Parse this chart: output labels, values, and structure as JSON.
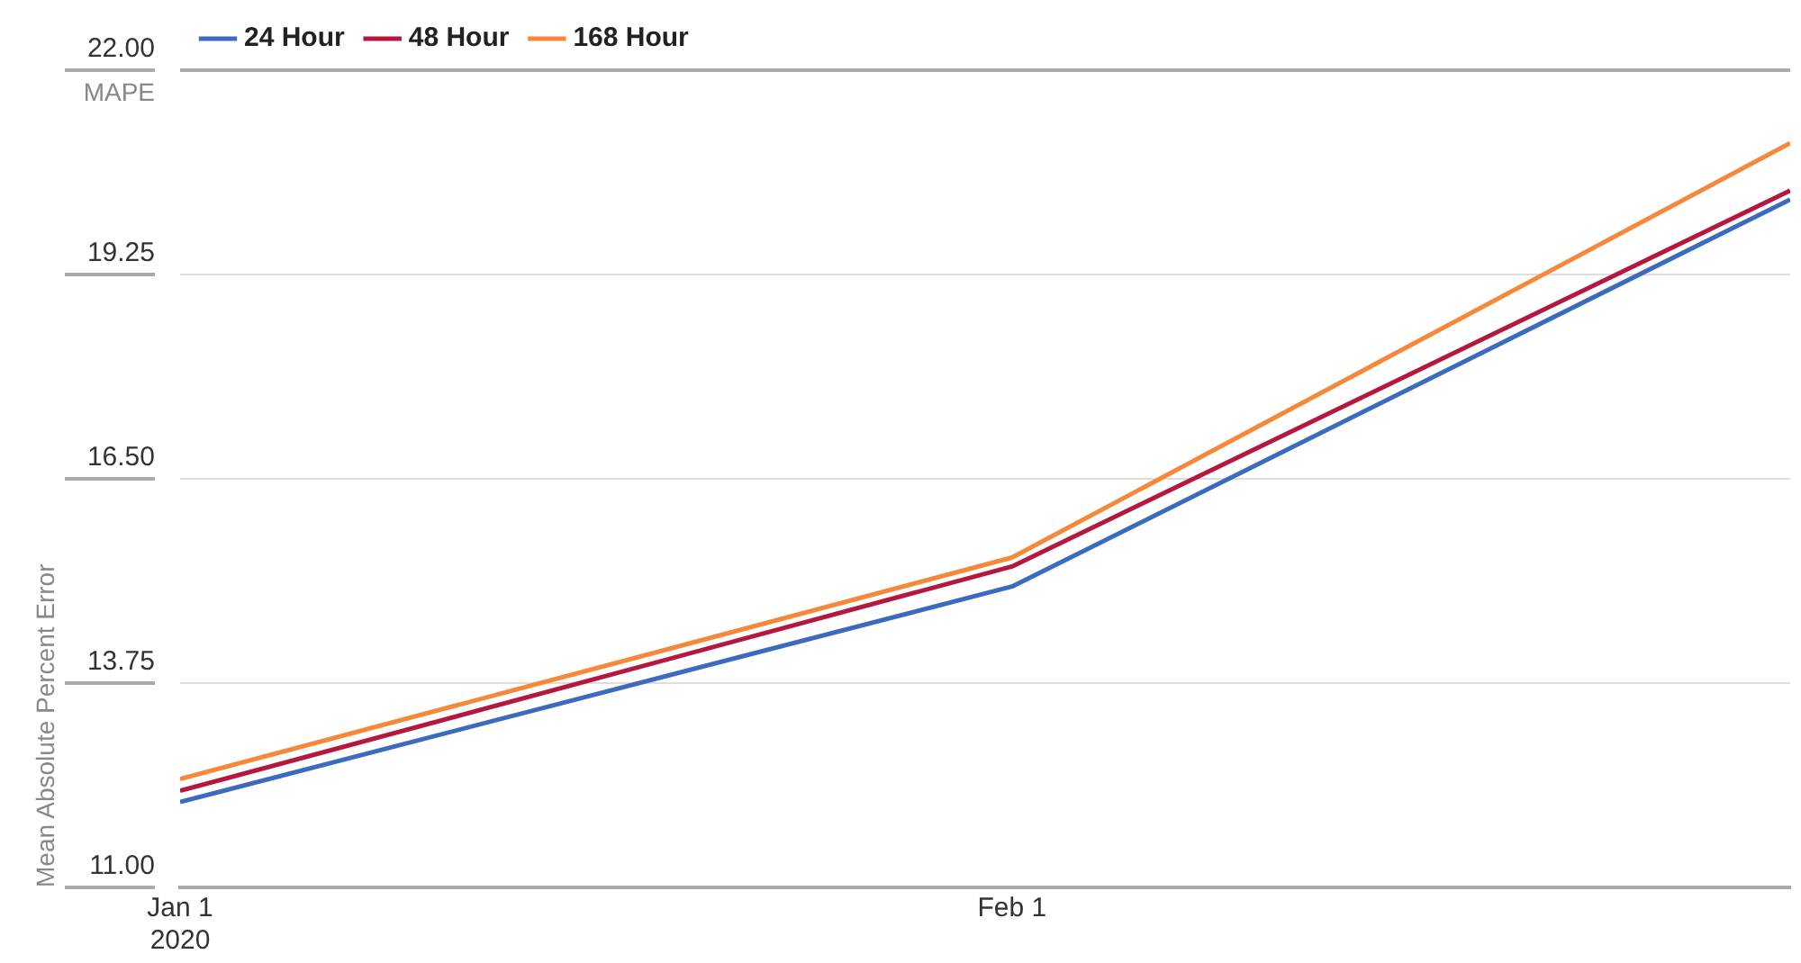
{
  "chart_data": {
    "type": "line",
    "ylabel": "Mean Absolute Percent Error",
    "annotations": [
      "MAPE"
    ],
    "x": [
      "2020-01-01",
      "2020-02-01",
      "2020-03-01"
    ],
    "series": [
      {
        "name": "24 Hour",
        "color": "#3a6bbf",
        "values": [
          12.15,
          15.05,
          20.26
        ]
      },
      {
        "name": "48 Hour",
        "color": "#b5173f",
        "values": [
          12.3,
          15.32,
          20.38
        ]
      },
      {
        "name": "168 Hour",
        "color": "#f7883a",
        "values": [
          12.46,
          15.44,
          21.02
        ]
      }
    ],
    "xlim": [
      "2020-01-01",
      "2020-03-01"
    ],
    "xticks": [
      {
        "value": "2020-01-01",
        "label": "Jan 1\n2020"
      },
      {
        "value": "2020-02-01",
        "label": "Feb 1"
      }
    ],
    "ylim": [
      11,
      22
    ],
    "yticks": [
      {
        "value": 11,
        "label": "11.00"
      },
      {
        "value": 13.75,
        "label": "13.75"
      },
      {
        "value": 16.5,
        "label": "16.50"
      },
      {
        "value": 19.25,
        "label": "19.25"
      },
      {
        "value": 22,
        "label": "22.00"
      }
    ],
    "grid": "y",
    "legend": "top left",
    "marker": "none",
    "line_style": "solid"
  }
}
